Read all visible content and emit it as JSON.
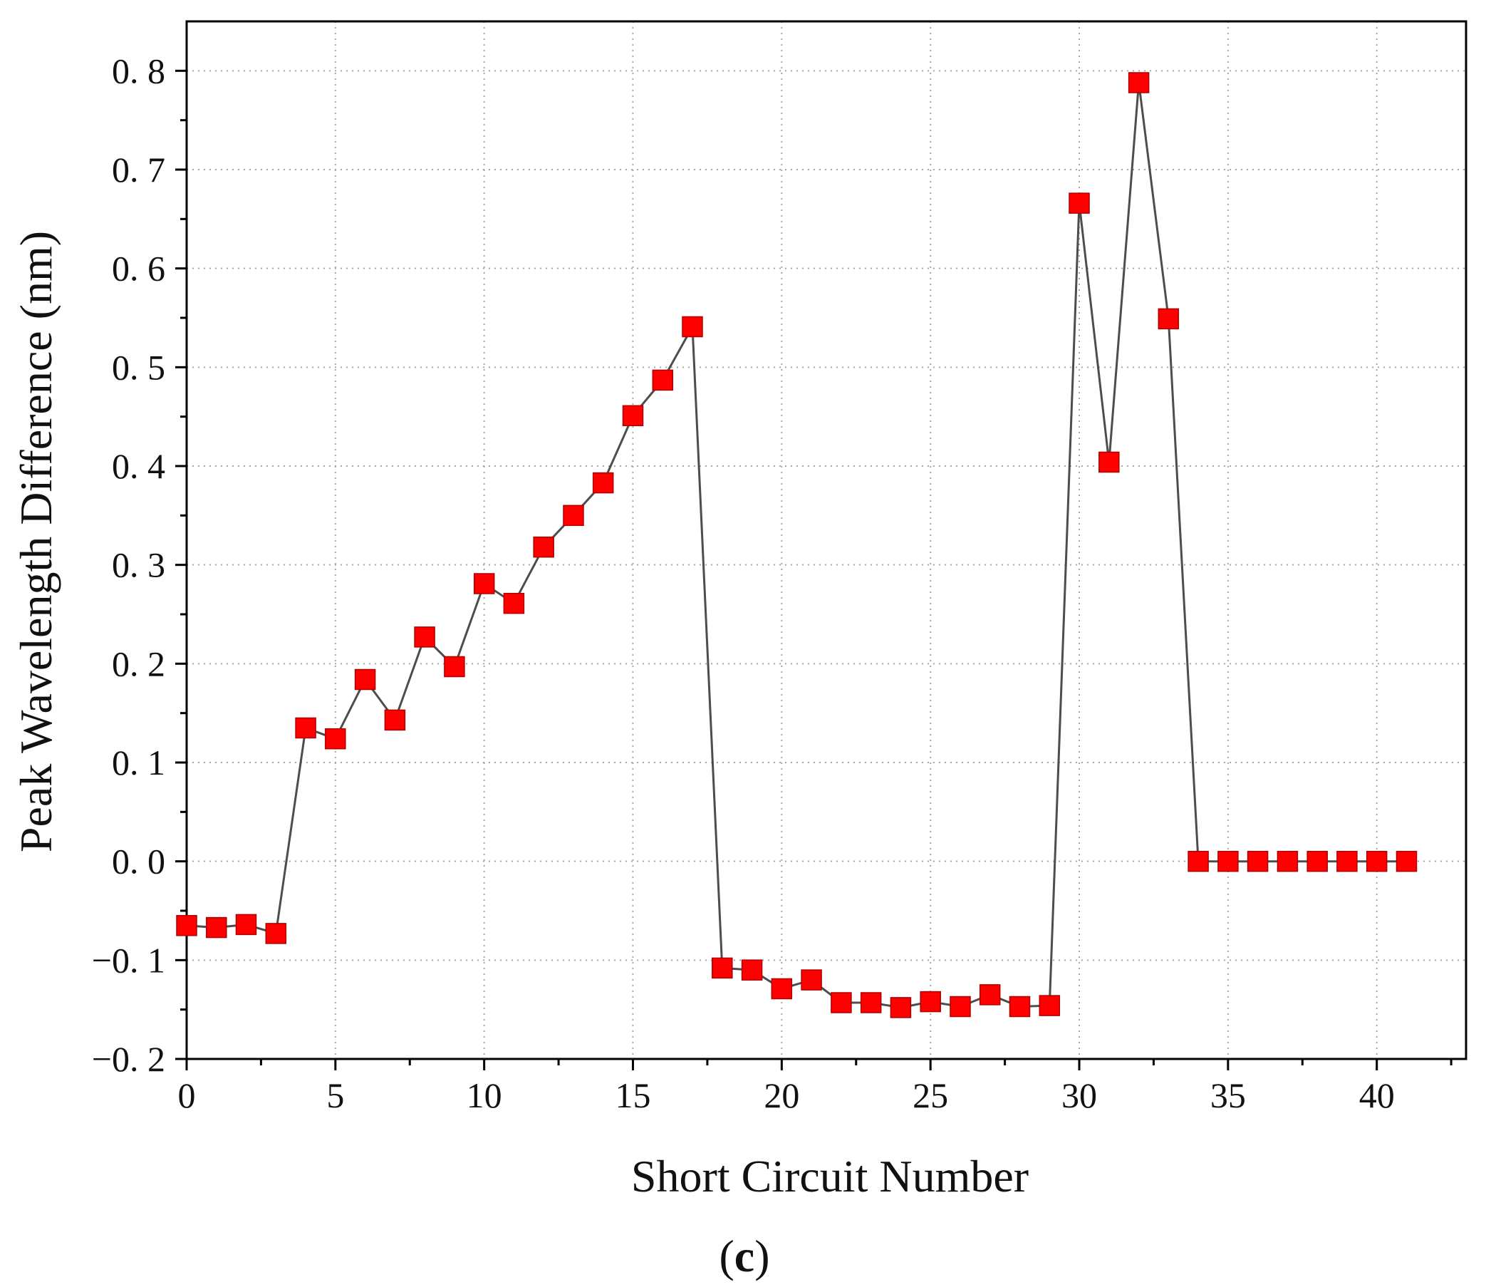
{
  "panel_label": {
    "open": "(",
    "letter": "c",
    "close": ")"
  },
  "colors": {
    "marker": "#ff0000",
    "marker_edge": "#b00000",
    "line": "#4d4d4d",
    "axis": "#000000",
    "grid": "#a6a6a6"
  },
  "chart_data": {
    "type": "line",
    "title": "",
    "xlabel": "Short Circuit Number",
    "ylabel": "Peak Wavelength Difference (nm)",
    "xlim": [
      0,
      43
    ],
    "ylim": [
      -0.2,
      0.85
    ],
    "x_ticks": [
      0,
      5,
      10,
      15,
      20,
      25,
      30,
      35,
      40
    ],
    "x_tick_labels": [
      "0",
      "5",
      "10",
      "15",
      "20",
      "25",
      "30",
      "35",
      "40"
    ],
    "y_ticks": [
      -0.2,
      -0.1,
      0.0,
      0.1,
      0.2,
      0.3,
      0.4,
      0.5,
      0.6,
      0.7,
      0.8
    ],
    "y_tick_labels": [
      "−0. 2",
      "−0. 1",
      "0. 0",
      "0. 1",
      "0. 2",
      "0. 3",
      "0. 4",
      "0. 5",
      "0. 6",
      "0. 7",
      "0. 8"
    ],
    "grid": true,
    "grid_style": "dotted",
    "legend": "none",
    "marker": "square",
    "series": [
      {
        "x": [
          0,
          1,
          2,
          3,
          4,
          5,
          6,
          7,
          8,
          9,
          10,
          11,
          12,
          13,
          14,
          15,
          16,
          17,
          18,
          19,
          20,
          21,
          22,
          23,
          24,
          25,
          26,
          27,
          28,
          29,
          30,
          31,
          32,
          33,
          34,
          35,
          36,
          37,
          38,
          39,
          40,
          41
        ],
        "values": [
          -0.065,
          -0.067,
          -0.064,
          -0.073,
          0.135,
          0.124,
          0.184,
          0.143,
          0.227,
          0.197,
          0.281,
          0.261,
          0.318,
          0.35,
          0.383,
          0.451,
          0.487,
          0.541,
          -0.108,
          -0.11,
          -0.129,
          -0.12,
          -0.143,
          -0.143,
          -0.148,
          -0.142,
          -0.147,
          -0.135,
          -0.147,
          -0.146,
          0.666,
          0.404,
          0.788,
          0.549,
          0.0,
          0.0,
          0.0,
          0.0,
          0.0,
          0.0,
          0.0,
          0.0
        ]
      }
    ]
  }
}
